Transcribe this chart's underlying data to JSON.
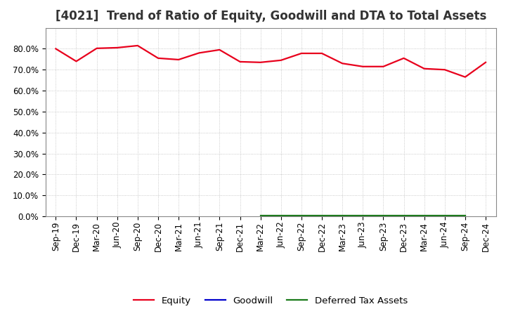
{
  "title": "[4021]  Trend of Ratio of Equity, Goodwill and DTA to Total Assets",
  "x_labels": [
    "Sep-19",
    "Dec-19",
    "Mar-20",
    "Jun-20",
    "Sep-20",
    "Dec-20",
    "Mar-21",
    "Jun-21",
    "Sep-21",
    "Dec-21",
    "Mar-22",
    "Jun-22",
    "Sep-22",
    "Dec-22",
    "Mar-23",
    "Jun-23",
    "Sep-23",
    "Dec-23",
    "Mar-24",
    "Jun-24",
    "Sep-24",
    "Dec-24"
  ],
  "equity": [
    80.0,
    74.0,
    80.2,
    80.5,
    81.5,
    75.5,
    74.8,
    78.0,
    79.5,
    73.8,
    73.5,
    74.5,
    77.8,
    77.8,
    73.0,
    71.5,
    71.5,
    75.5,
    70.5,
    70.0,
    66.5,
    73.5
  ],
  "goodwill": [
    null,
    null,
    null,
    null,
    null,
    null,
    null,
    null,
    null,
    null,
    null,
    null,
    null,
    null,
    null,
    null,
    null,
    null,
    null,
    null,
    null,
    null
  ],
  "dta": [
    null,
    null,
    null,
    null,
    null,
    null,
    null,
    null,
    null,
    null,
    0.5,
    0.5,
    0.5,
    0.5,
    0.5,
    0.5,
    0.5,
    0.5,
    0.5,
    0.5,
    0.5,
    null
  ],
  "equity_color": "#e8001c",
  "goodwill_color": "#0000cc",
  "dta_color": "#1a7a1a",
  "background_color": "#ffffff",
  "plot_bg_color": "#ffffff",
  "grid_color": "#bbbbbb",
  "ylim": [
    0,
    90
  ],
  "yticks": [
    0,
    10,
    20,
    30,
    40,
    50,
    60,
    70,
    80
  ],
  "legend_labels": [
    "Equity",
    "Goodwill",
    "Deferred Tax Assets"
  ],
  "title_fontsize": 12,
  "tick_fontsize": 8.5
}
